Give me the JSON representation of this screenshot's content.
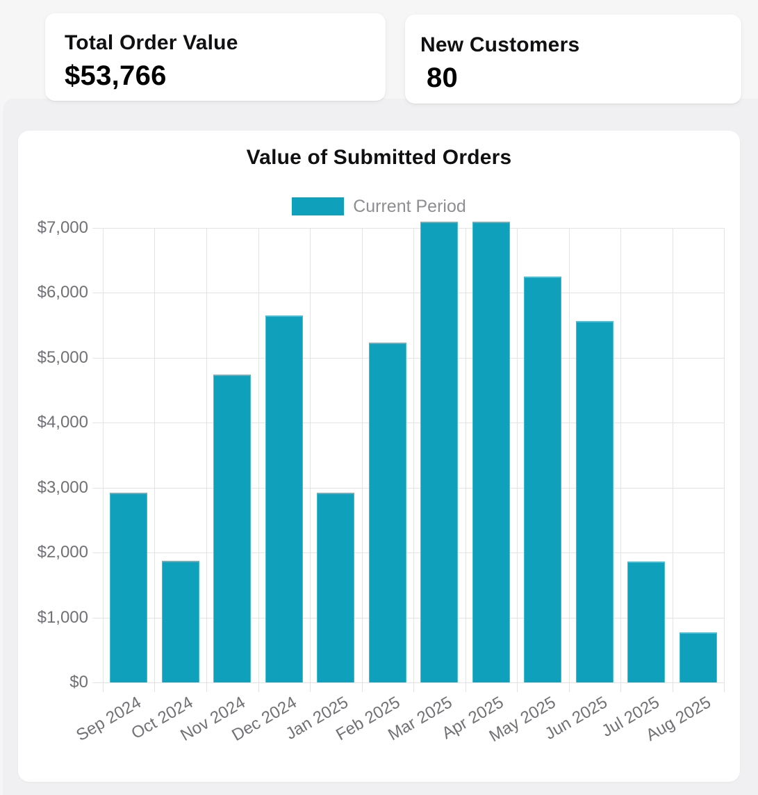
{
  "stats": [
    {
      "label": "Total Order Value",
      "value": "$53,766"
    },
    {
      "label": "New Customers",
      "value": "80"
    }
  ],
  "chart": {
    "bar_color": "#0fa0bc",
    "bar_border_color": "#49bdd3",
    "grid_color": "#e3e3e6",
    "axis_text_color": "#717175",
    "legend_text_color": "#8e8e92",
    "title_color": "#101013"
  },
  "chart_data": {
    "type": "bar",
    "title": "Value of Submitted Orders",
    "categories": [
      "Sep 2024",
      "Oct 2024",
      "Nov 2024",
      "Dec 2024",
      "Jan 2025",
      "Feb 2025",
      "Mar 2025",
      "Apr 2025",
      "May 2025",
      "Jun 2025",
      "Jul 2025",
      "Aug 2025"
    ],
    "series": [
      {
        "name": "Current Period",
        "values": [
          2920,
          1870,
          4740,
          5650,
          2920,
          5230,
          7100,
          7100,
          6250,
          5570,
          1860,
          770
        ]
      }
    ],
    "xlabel": "",
    "ylabel": "",
    "ylim": [
      0,
      7000
    ],
    "ytick_step": 1000,
    "ytick_prefix": "$",
    "x_tick_rotation": -30,
    "grid": true,
    "legend_position": "top"
  }
}
